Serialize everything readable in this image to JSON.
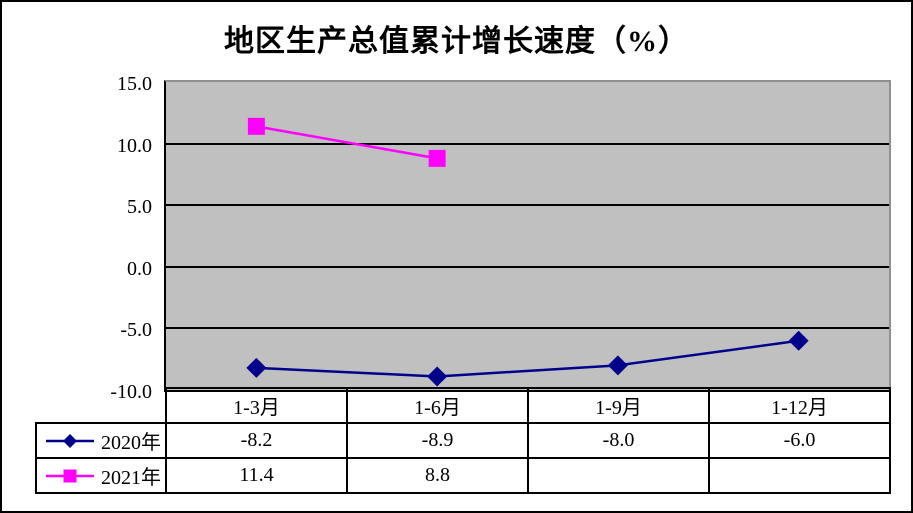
{
  "title": "地区生产总值累计增长速度（%）",
  "chart_data": {
    "type": "line",
    "title": "地区生产总值累计增长速度（%）",
    "categories": [
      "1-3月",
      "1-6月",
      "1-9月",
      "1-12月"
    ],
    "series": [
      {
        "name": "2020年",
        "color": "#00008B",
        "marker": "diamond",
        "values": [
          -8.2,
          -8.9,
          -8.0,
          -6.0
        ]
      },
      {
        "name": "2021年",
        "color": "#FF00FF",
        "marker": "square",
        "values": [
          11.4,
          8.8,
          null,
          null
        ]
      }
    ],
    "y_ticks": [
      15.0,
      10.0,
      5.0,
      0.0,
      -5.0,
      -10.0
    ],
    "y_tick_labels": [
      "15.0",
      "10.0",
      "5.0",
      "0.0",
      "-5.0",
      "-10.0"
    ],
    "ylim": [
      -10,
      15
    ],
    "xlabel": "",
    "ylabel": "",
    "grid": true,
    "legend_position": "table-left",
    "plot_bg_color": "#C0C0C0",
    "plot_border_color": "#909090",
    "grid_color": "#000000",
    "table_display": [
      [
        "-8.2",
        "-8.9",
        "-8.0",
        "-6.0"
      ],
      [
        "11.4",
        "8.8",
        "",
        ""
      ]
    ]
  }
}
